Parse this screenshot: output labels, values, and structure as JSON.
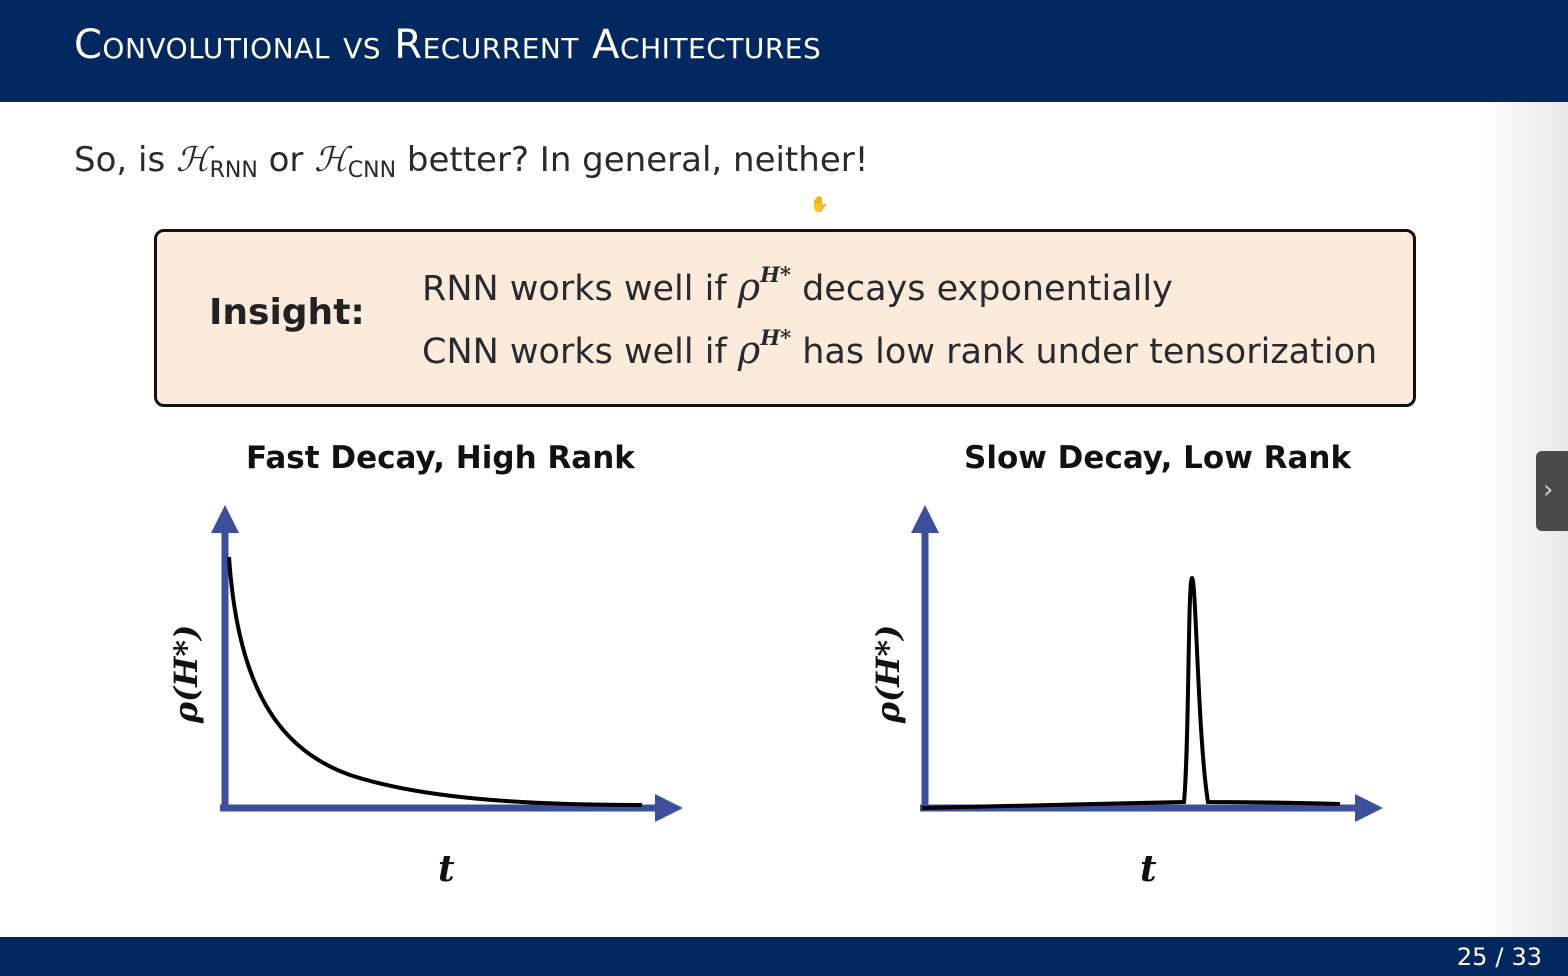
{
  "slide": {
    "title": "Convolutional vs Recurrent Achitectures",
    "question": {
      "prefix": "So, is ",
      "h1": "ℋ",
      "h1_sub": "RNN",
      "mid": " or ",
      "h2": "ℋ",
      "h2_sub": "CNN",
      "suffix": " better? In general, neither!"
    },
    "insight": {
      "label": "Insight:",
      "line1": {
        "before": "RNN works well if ",
        "symbol": "ρ",
        "sup": "H*",
        "after": " decays exponentially"
      },
      "line2": {
        "before": "CNN works well if ",
        "symbol": "ρ",
        "sup": "H*",
        "after": " has low rank under tensorization"
      }
    },
    "plots": [
      {
        "title": "Fast Decay, High Rank",
        "ylabel": "ρ(H*)",
        "xlabel": "t"
      },
      {
        "title": "Slow Decay, Low Rank",
        "ylabel": "ρ(H*)",
        "xlabel": "t"
      }
    ]
  },
  "footer": {
    "page": "25",
    "sep": "/",
    "total": "33"
  },
  "icons": {
    "cursor": "hand-cursor-icon",
    "next": "chevron-right-icon"
  },
  "colors": {
    "header": "#03275f",
    "axis": "#3b4f9a",
    "insight_bg": "#faebdc"
  }
}
